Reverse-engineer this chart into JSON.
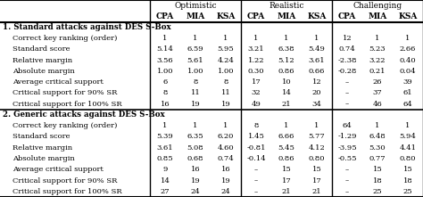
{
  "section1_title": "1. Standard attacks against DES S-Box",
  "section1_rows": [
    [
      "Correct key ranking (order)",
      "1",
      "1",
      "1",
      "1",
      "1",
      "1",
      "12",
      "1",
      "1"
    ],
    [
      "Standard score",
      "5.14",
      "6.59",
      "5.95",
      "3.21",
      "6.38",
      "5.49",
      "0.74",
      "5.23",
      "2.66"
    ],
    [
      "Relative margin",
      "3.56",
      "5.61",
      "4.24",
      "1.22",
      "5.12",
      "3.61",
      "-2.38",
      "3.22",
      "0.40"
    ],
    [
      "Absolute margin",
      "1.00",
      "1.00",
      "1.00",
      "0.30",
      "0.86",
      "0.66",
      "-0.28",
      "0.21",
      "0.04"
    ],
    [
      "Average critical support",
      "6",
      "8",
      "8",
      "17",
      "10",
      "12",
      "–",
      "26",
      "39"
    ],
    [
      "Critical support for 90% SR",
      "8",
      "11",
      "11",
      "32",
      "14",
      "20",
      "–",
      "37",
      "61"
    ],
    [
      "Critical support for 100% SR",
      "16",
      "19",
      "19",
      "49",
      "21",
      "34",
      "–",
      "46",
      "64"
    ]
  ],
  "section2_title": "2. Generic attacks against DES S-Box",
  "section2_rows": [
    [
      "Correct key ranking (order)",
      "1",
      "1",
      "1",
      "8",
      "1",
      "1",
      "64",
      "1",
      "1"
    ],
    [
      "Standard score",
      "5.39",
      "6.35",
      "6.20",
      "1.45",
      "6.66",
      "5.77",
      "-1.29",
      "6.48",
      "5.94"
    ],
    [
      "Relative margin",
      "3.61",
      "5.08",
      "4.60",
      "-0.81",
      "5.45",
      "4.12",
      "-3.95",
      "5.30",
      "4.41"
    ],
    [
      "Absolute margin",
      "0.85",
      "0.68",
      "0.74",
      "-0.14",
      "0.86",
      "0.80",
      "-0.55",
      "0.77",
      "0.80"
    ],
    [
      "Average critical support",
      "9",
      "16",
      "16",
      "–",
      "15",
      "15",
      "–",
      "15",
      "15"
    ],
    [
      "Critical support for 90% SR",
      "14",
      "19",
      "19",
      "–",
      "17",
      "17",
      "–",
      "18",
      "18"
    ],
    [
      "Critical support for 100% SR",
      "27",
      "24",
      "24",
      "–",
      "21",
      "21",
      "–",
      "25",
      "25"
    ]
  ],
  "group_labels": [
    "Optimistic",
    "Realistic",
    "Challenging"
  ],
  "col_labels": [
    "CPA",
    "MIA",
    "KSA",
    "CPA",
    "MIA",
    "KSA",
    "CPA",
    "MIA",
    "KSA"
  ],
  "background_color": "#ffffff",
  "line_color": "#000000",
  "font_size": 6.0,
  "header_font_size": 6.5,
  "bold_font_size": 6.2
}
